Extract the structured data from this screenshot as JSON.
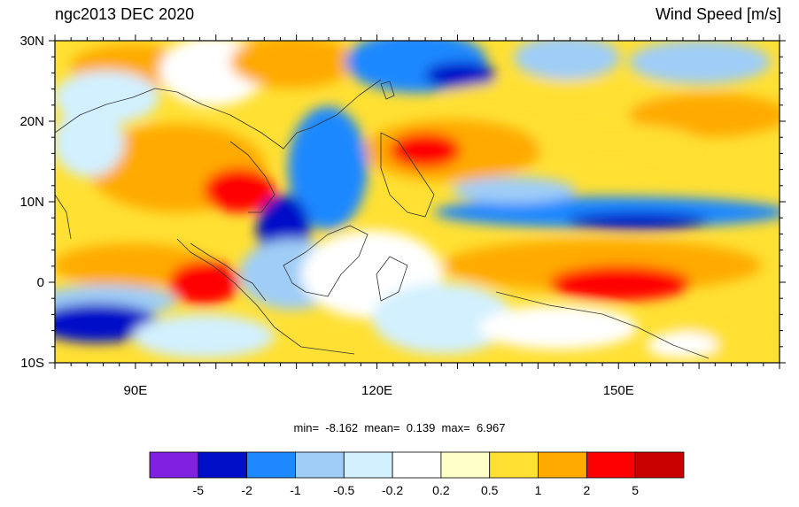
{
  "header": {
    "left_title": "ngc2013 DEC 2020",
    "right_title": "Wind Speed [m/s]"
  },
  "axes": {
    "y_ticks": [
      {
        "value": 30,
        "label": "30N"
      },
      {
        "value": 20,
        "label": "20N"
      },
      {
        "value": 10,
        "label": "10N"
      },
      {
        "value": 0,
        "label": "0"
      },
      {
        "value": -10,
        "label": "10S"
      }
    ],
    "x_ticks": [
      {
        "value": 90,
        "label": "90E"
      },
      {
        "value": 120,
        "label": "120E"
      },
      {
        "value": 150,
        "label": "150E"
      }
    ],
    "lon_range": [
      80,
      170
    ],
    "lat_range": [
      -10,
      30
    ]
  },
  "stats": {
    "min_label": "min=",
    "min_value": "-8.162",
    "mean_label": "mean=",
    "mean_value": "0.139",
    "max_label": "max=",
    "max_value": "6.967"
  },
  "colorbar": {
    "colors": [
      "#8020e0",
      "#0010c8",
      "#1e88ff",
      "#9fcdf7",
      "#d2f0ff",
      "#ffffff",
      "#ffffc8",
      "#ffe033",
      "#ffaa00",
      "#ff0000",
      "#c80000"
    ],
    "labels": [
      "-5",
      "-2",
      "-1",
      "-0.5",
      "-0.2",
      "0.2",
      "0.5",
      "1",
      "2",
      "5"
    ]
  }
}
